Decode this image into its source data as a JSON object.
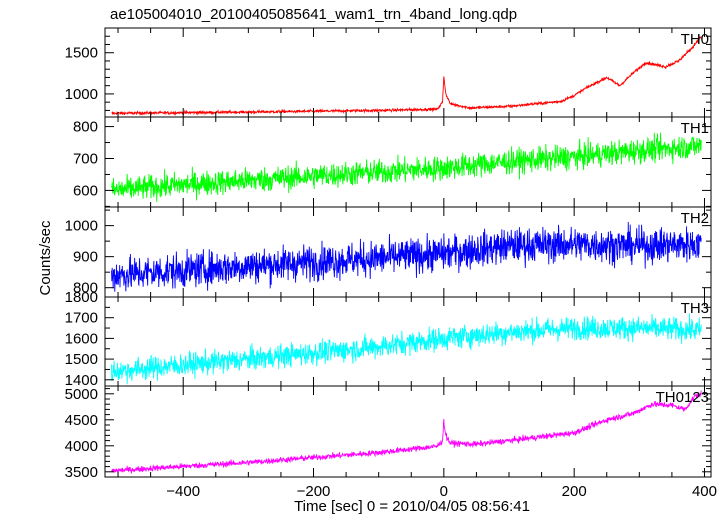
{
  "figure": {
    "title": "ae105004010_20100405085641_wam1_trn_4band_long.qdp",
    "xlabel": "Time [sec] 0 = 2010/04/05 08:56:41",
    "ylabel": "Counts/sec"
  },
  "chart_data": {
    "type": "line",
    "x_range": [
      -520,
      410
    ],
    "x_ticks": [
      -400,
      -200,
      0,
      200,
      400
    ],
    "x_tick_labels": [
      "−400",
      "−200",
      "0",
      "200",
      "400"
    ],
    "grid": false,
    "panels": [
      {
        "name": "TH0",
        "color": "#ff0000",
        "ylim": [
          720,
          1800
        ],
        "y_ticks": [
          1000,
          1500
        ],
        "y_minor": [
          800,
          900,
          1100,
          1200,
          1300,
          1400,
          1600,
          1700
        ],
        "noise": 16,
        "points": [
          [
            -510,
            765
          ],
          [
            -300,
            780
          ],
          [
            -100,
            800
          ],
          [
            -10,
            815
          ],
          [
            -2,
            900
          ],
          [
            0,
            1220
          ],
          [
            3,
            1000
          ],
          [
            10,
            880
          ],
          [
            40,
            830
          ],
          [
            100,
            850
          ],
          [
            180,
            910
          ],
          [
            200,
            980
          ],
          [
            220,
            1080
          ],
          [
            250,
            1200
          ],
          [
            270,
            1100
          ],
          [
            290,
            1250
          ],
          [
            310,
            1380
          ],
          [
            340,
            1330
          ],
          [
            360,
            1400
          ],
          [
            380,
            1550
          ],
          [
            395,
            1700
          ]
        ]
      },
      {
        "name": "TH1",
        "color": "#00ff00",
        "ylim": [
          548,
          830
        ],
        "y_ticks": [
          600,
          700,
          800
        ],
        "y_minor": [
          550,
          650,
          750
        ],
        "noise": 38,
        "points": [
          [
            -510,
            600
          ],
          [
            -400,
            618
          ],
          [
            -200,
            645
          ],
          [
            0,
            670
          ],
          [
            100,
            690
          ],
          [
            200,
            705
          ],
          [
            300,
            725
          ],
          [
            395,
            740
          ]
        ]
      },
      {
        "name": "TH2",
        "color": "#0000ff",
        "ylim": [
          770,
          1060
        ],
        "y_ticks": [
          800,
          900,
          1000
        ],
        "y_minor": [
          850,
          950,
          1050
        ],
        "noise": 55,
        "points": [
          [
            -510,
            840
          ],
          [
            -300,
            870
          ],
          [
            -100,
            895
          ],
          [
            0,
            910
          ],
          [
            100,
            935
          ],
          [
            200,
            940
          ],
          [
            300,
            935
          ],
          [
            395,
            940
          ]
        ]
      },
      {
        "name": "TH3",
        "color": "#00ffff",
        "ylim": [
          1370,
          1800
        ],
        "y_ticks": [
          1400,
          1500,
          1600,
          1700,
          1800
        ],
        "y_minor": [
          1450,
          1550,
          1650,
          1750
        ],
        "noise": 55,
        "points": [
          [
            -510,
            1440
          ],
          [
            -300,
            1500
          ],
          [
            -100,
            1560
          ],
          [
            0,
            1600
          ],
          [
            100,
            1630
          ],
          [
            200,
            1650
          ],
          [
            300,
            1650
          ],
          [
            395,
            1640
          ]
        ]
      },
      {
        "name": "TH0123",
        "color": "#ff00ff",
        "ylim": [
          3400,
          5150
        ],
        "y_ticks": [
          3500,
          4000,
          4500,
          5000
        ],
        "y_minor": [
          3600,
          3700,
          3800,
          3900,
          4100,
          4200,
          4300,
          4400,
          4600,
          4700,
          4800,
          4900,
          5100
        ],
        "noise": 55,
        "points": [
          [
            -510,
            3520
          ],
          [
            -300,
            3680
          ],
          [
            -100,
            3870
          ],
          [
            -10,
            3990
          ],
          [
            -2,
            4100
          ],
          [
            0,
            4480
          ],
          [
            3,
            4200
          ],
          [
            10,
            4050
          ],
          [
            50,
            4030
          ],
          [
            100,
            4100
          ],
          [
            200,
            4250
          ],
          [
            250,
            4500
          ],
          [
            290,
            4620
          ],
          [
            320,
            4800
          ],
          [
            350,
            4780
          ],
          [
            370,
            4700
          ],
          [
            385,
            4950
          ],
          [
            395,
            5000
          ]
        ]
      }
    ]
  }
}
